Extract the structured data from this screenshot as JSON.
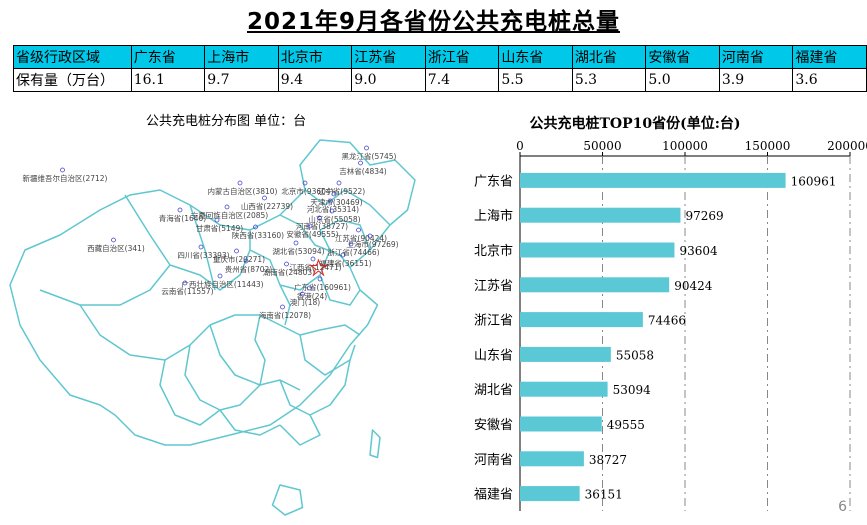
{
  "page": {
    "title": "2021年9月各省份公共充电桩总量",
    "page_number": "6"
  },
  "summary_table": {
    "row_header": "省级行政区域",
    "value_header": "保有量（万台）",
    "provinces": [
      "广东省",
      "上海市",
      "北京市",
      "江苏省",
      "浙江省",
      "山东省",
      "湖北省",
      "安徽省",
      "河南省",
      "福建省"
    ],
    "values": [
      "16.1",
      "9.7",
      "9.4",
      "9.0",
      "7.4",
      "5.5",
      "5.3",
      "5.0",
      "3.9",
      "3.6"
    ]
  },
  "map": {
    "title": "公共充电桩分布图   单位：台",
    "outline_color": "#5fc7d0",
    "marker_color": "#3a3ad0",
    "capital_marker_color": "#e02020",
    "labels": [
      {
        "text": "黑龙江省(5745)",
        "x": 738,
        "y": 68
      },
      {
        "text": "吉林省(4834)",
        "x": 726,
        "y": 98
      },
      {
        "text": "新疆维吾尔自治区(2712)",
        "x": 130,
        "y": 112
      },
      {
        "text": "辽宁省(9522)",
        "x": 683,
        "y": 138
      },
      {
        "text": "内蒙古自治区(3810)",
        "x": 485,
        "y": 138
      },
      {
        "text": "北京市(93604)",
        "x": 615,
        "y": 138
      },
      {
        "text": "天津市(30469)",
        "x": 673,
        "y": 160
      },
      {
        "text": "山西省(22739)",
        "x": 534,
        "y": 168
      },
      {
        "text": "河北省(35314)",
        "x": 666,
        "y": 174
      },
      {
        "text": "宁夏回族自治区(2085)",
        "x": 459,
        "y": 186
      },
      {
        "text": "青海省(1640)",
        "x": 365,
        "y": 192
      },
      {
        "text": "山东省(55058)",
        "x": 669,
        "y": 194
      },
      {
        "text": "甘肃省(5149)",
        "x": 439,
        "y": 212
      },
      {
        "text": "河南省(38727)",
        "x": 644,
        "y": 208
      },
      {
        "text": "陕西省(33160)",
        "x": 516,
        "y": 226
      },
      {
        "text": "安徽省(49555)",
        "x": 625,
        "y": 224
      },
      {
        "text": "江苏省(90424)",
        "x": 722,
        "y": 232
      },
      {
        "text": "上海市(97269)",
        "x": 745,
        "y": 244
      },
      {
        "text": "西藏自治区(341)",
        "x": 232,
        "y": 252
      },
      {
        "text": "湖北省(53094)",
        "x": 597,
        "y": 258
      },
      {
        "text": "浙江省(74466)",
        "x": 707,
        "y": 260
      },
      {
        "text": "四川省(33393)",
        "x": 407,
        "y": 266
      },
      {
        "text": "重庆市(20271)",
        "x": 478,
        "y": 274
      },
      {
        "text": "福建省(36151)",
        "x": 691,
        "y": 282
      },
      {
        "text": "江西省(12471)",
        "x": 631,
        "y": 290
      },
      {
        "text": "贵州省(8702)",
        "x": 497,
        "y": 294
      },
      {
        "text": "湖南省(24803)",
        "x": 578,
        "y": 300
      },
      {
        "text": "广西壮族自治区(11443)",
        "x": 445,
        "y": 324
      },
      {
        "text": "广东省(160961)",
        "x": 645,
        "y": 330
      },
      {
        "text": "云南省(11557)",
        "x": 375,
        "y": 338
      },
      {
        "text": "香港(24)",
        "x": 624,
        "y": 348
      },
      {
        "text": "澳门(18)",
        "x": 610,
        "y": 360
      },
      {
        "text": "海南省(12078)",
        "x": 570,
        "y": 386
      }
    ]
  },
  "chart_data": {
    "type": "bar",
    "orientation": "horizontal",
    "title": "公共充电桩TOP10省份(单位:台)",
    "categories": [
      "广东省",
      "上海市",
      "北京市",
      "江苏省",
      "浙江省",
      "山东省",
      "湖北省",
      "安徽省",
      "河南省",
      "福建省"
    ],
    "values": [
      160961,
      97269,
      93604,
      90424,
      74466,
      55058,
      53094,
      49555,
      38727,
      36151
    ],
    "xlim": [
      0,
      200000
    ],
    "xticks": [
      0,
      50000,
      100000,
      150000,
      200000
    ],
    "x_axis_position": "top",
    "grid": "vertical-dashed",
    "bar_color": "#5bc8d6",
    "data_labels": true
  }
}
